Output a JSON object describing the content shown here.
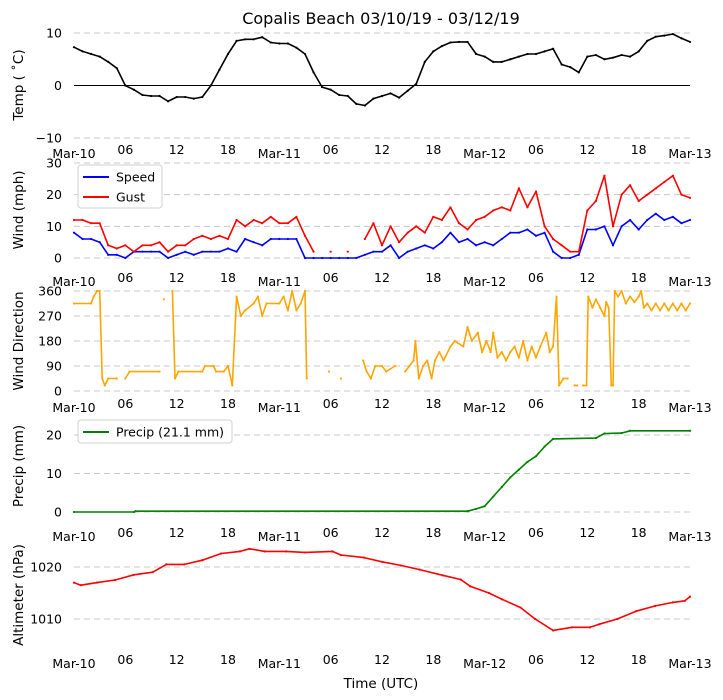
{
  "title": "Copalis Beach 03/10/19 - 03/12/19",
  "xlabel": "Time (UTC)",
  "xticks": {
    "hours": [
      0,
      6,
      12,
      18,
      24,
      30,
      36,
      42,
      48,
      54,
      60,
      66,
      72
    ],
    "labels": [
      "Mar-10",
      "06",
      "12",
      "18",
      "Mar-11",
      "06",
      "12",
      "18",
      "Mar-12",
      "06",
      "12",
      "18",
      "Mar-13"
    ]
  },
  "chart_data": [
    {
      "type": "line",
      "ylabel": "Temp ( ˚C)",
      "ylim": [
        -10,
        10
      ],
      "yticks": [
        -10,
        0,
        10
      ],
      "zero_line": true,
      "legend": null,
      "series": [
        {
          "name": "Temp",
          "color": "#000000",
          "hourly": [
            7.3,
            6.5,
            6,
            5.5,
            4.5,
            3.3,
            0,
            -0.8,
            -1.8,
            -2,
            -2,
            -3,
            -2.2,
            -2.2,
            -2.5,
            -2.2,
            0,
            3,
            6,
            8.5,
            8.8,
            8.8,
            9.2,
            8.2,
            8,
            8,
            7.2,
            6,
            2.5,
            -0.3,
            -0.8,
            -1.8,
            -2,
            -3.5,
            -3.8,
            -2.5,
            -2,
            -1.5,
            -2.3,
            -1,
            0.3,
            4.5,
            6.5,
            7.5,
            8.2,
            8.3,
            8.3,
            6,
            5.5,
            4.5,
            4.5,
            5,
            5.5,
            6,
            6,
            6.5,
            7,
            4,
            3.5,
            2.5,
            5.5,
            5.8,
            5,
            5.3,
            5.8,
            5.5,
            6.5,
            8.5,
            9.3,
            9.5,
            9.8,
            9,
            8.3
          ]
        }
      ]
    },
    {
      "type": "line",
      "ylabel": "Wind (mph)",
      "ylim": [
        0,
        30
      ],
      "yticks": [
        0,
        10,
        20,
        30
      ],
      "legend": "top-left",
      "series": [
        {
          "name": "Speed",
          "color": "#0000ff",
          "hourly": [
            8,
            6,
            6,
            5,
            1,
            1,
            0,
            2,
            2,
            2,
            2,
            0,
            1,
            2,
            1,
            2,
            2,
            2,
            3,
            2,
            6,
            5,
            4,
            6,
            6,
            6,
            6,
            0,
            0,
            0,
            0,
            0,
            0,
            0,
            1,
            2,
            2,
            4,
            0,
            2,
            3,
            4,
            3,
            5,
            8,
            5,
            6,
            4,
            5,
            4,
            6,
            8,
            8,
            9,
            7,
            8,
            2,
            0,
            0,
            1,
            9,
            9,
            10,
            4,
            10,
            12,
            9,
            12,
            14,
            12,
            13,
            11,
            12
          ]
        },
        {
          "name": "Gust",
          "color": "#ff0000",
          "hourly": [
            12,
            12,
            11,
            11,
            4,
            3,
            4,
            2,
            4,
            4,
            5,
            2,
            4,
            4,
            6,
            7,
            6,
            7,
            6,
            12,
            10,
            12,
            11,
            13,
            11,
            11,
            13,
            7,
            2,
            null,
            2,
            null,
            2,
            null,
            6,
            11,
            4,
            10,
            5,
            8,
            10,
            8,
            13,
            12,
            16,
            11,
            9,
            12,
            13,
            15,
            16,
            15,
            22,
            16,
            21,
            10,
            6,
            4,
            2,
            2,
            15,
            18,
            26,
            10,
            20,
            23,
            18,
            20,
            22,
            24,
            26,
            20,
            19
          ]
        }
      ]
    },
    {
      "type": "line",
      "ylabel": "Wind Direction",
      "ylim": [
        0,
        360
      ],
      "yticks": [
        0,
        90,
        180,
        270,
        360
      ],
      "legend": null,
      "series": [
        {
          "name": "Direction",
          "color": "#ffa500",
          "points": [
            [
              0,
              315
            ],
            [
              2,
              315
            ],
            [
              2.3,
              340
            ],
            [
              2.7,
              360
            ],
            [
              3,
              360
            ],
            [
              3.3,
              45
            ],
            [
              3.6,
              20
            ],
            [
              4,
              45
            ],
            [
              5,
              45
            ],
            null,
            [
              6,
              45
            ],
            [
              6.5,
              70
            ],
            [
              10,
              70
            ],
            null,
            [
              10.5,
              330
            ],
            null,
            [
              11.5,
              360
            ],
            [
              11.8,
              45
            ],
            [
              12.2,
              70
            ],
            [
              15,
              70
            ],
            [
              15.3,
              90
            ],
            [
              16.3,
              90
            ],
            [
              16.6,
              70
            ],
            [
              17.5,
              70
            ],
            [
              18,
              90
            ],
            [
              18.5,
              20
            ],
            [
              19,
              340
            ],
            [
              19.5,
              270
            ],
            [
              20,
              290
            ],
            [
              21,
              315
            ],
            [
              21.5,
              340
            ],
            [
              22,
              270
            ],
            [
              22.5,
              315
            ],
            [
              24,
              315
            ],
            [
              24.5,
              340
            ],
            [
              25,
              290
            ],
            [
              25.5,
              360
            ],
            [
              26,
              290
            ],
            [
              26.5,
              315
            ],
            [
              27,
              360
            ],
            [
              27.2,
              45
            ],
            null,
            [
              29.8,
              70
            ],
            null,
            [
              31.2,
              45
            ],
            null,
            [
              33.8,
              110
            ],
            [
              34.2,
              70
            ],
            [
              34.7,
              45
            ],
            [
              35.2,
              90
            ],
            [
              36,
              90
            ],
            [
              36.5,
              70
            ],
            [
              37.5,
              90
            ],
            null,
            [
              38.7,
              70
            ],
            [
              39.2,
              90
            ],
            [
              39.7,
              110
            ],
            [
              39.9,
              180
            ],
            [
              40.3,
              45
            ],
            [
              40.8,
              90
            ],
            [
              41.3,
              110
            ],
            [
              41.8,
              45
            ],
            [
              42.2,
              110
            ],
            [
              42.7,
              140
            ],
            [
              43.2,
              110
            ],
            [
              44,
              160
            ],
            [
              44.5,
              180
            ],
            [
              45.5,
              160
            ],
            [
              46,
              230
            ],
            [
              46.5,
              180
            ],
            [
              47.2,
              210
            ],
            [
              47.7,
              140
            ],
            [
              48.2,
              180
            ],
            [
              48.7,
              140
            ],
            [
              49,
              210
            ],
            [
              49.5,
              120
            ],
            [
              50,
              140
            ],
            [
              50.5,
              110
            ],
            [
              51,
              140
            ],
            [
              51.5,
              160
            ],
            [
              52,
              120
            ],
            [
              52.5,
              180
            ],
            [
              53,
              110
            ],
            [
              53.5,
              160
            ],
            [
              54,
              120
            ],
            [
              54.5,
              160
            ],
            [
              55.2,
              210
            ],
            [
              55.6,
              140
            ],
            [
              56,
              160
            ],
            [
              56.4,
              340
            ],
            [
              56.7,
              20
            ],
            [
              57.2,
              45
            ],
            [
              57.7,
              45
            ],
            null,
            [
              58.5,
              20
            ],
            [
              58.8,
              20
            ],
            null,
            [
              59.5,
              20
            ],
            [
              59.9,
              20
            ],
            [
              60.1,
              340
            ],
            [
              60.6,
              300
            ],
            [
              61,
              330
            ],
            [
              61.5,
              300
            ],
            [
              62,
              270
            ],
            [
              62.2,
              320
            ],
            [
              62.5,
              300
            ],
            [
              62.8,
              20
            ],
            [
              63,
              20
            ],
            [
              63.2,
              360
            ],
            [
              63.6,
              340
            ],
            [
              64,
              360
            ],
            [
              64.5,
              315
            ],
            [
              65,
              340
            ],
            [
              65.5,
              320
            ],
            [
              66,
              340
            ],
            [
              66.3,
              360
            ],
            [
              66.6,
              300
            ],
            [
              67,
              315
            ],
            [
              67.5,
              290
            ],
            [
              68,
              315
            ],
            [
              68.5,
              290
            ],
            [
              69,
              315
            ],
            [
              69.5,
              290
            ],
            [
              70,
              315
            ],
            [
              70.5,
              290
            ],
            [
              71,
              315
            ],
            [
              71.5,
              290
            ],
            [
              72,
              315
            ]
          ]
        }
      ]
    },
    {
      "type": "line",
      "ylabel": "Precip (mm)",
      "ylim": [
        0,
        22
      ],
      "yticks": [
        0,
        10,
        20
      ],
      "legend": "top-left",
      "series": [
        {
          "name": "Precip (21.1 mm)",
          "color": "#008000",
          "points": [
            [
              0,
              0
            ],
            [
              7,
              0
            ],
            [
              7.2,
              0.2
            ],
            [
              46,
              0.2
            ],
            [
              47,
              0.8
            ],
            [
              48,
              1.5
            ],
            [
              49,
              4
            ],
            [
              50,
              6.5
            ],
            [
              51,
              9
            ],
            [
              52,
              11
            ],
            [
              53,
              13
            ],
            [
              54,
              14.5
            ],
            [
              55,
              17
            ],
            [
              56,
              19
            ],
            [
              61,
              19.2
            ],
            [
              62,
              20.4
            ],
            [
              64,
              20.5
            ],
            [
              65,
              21.1
            ],
            [
              72,
              21.1
            ]
          ]
        }
      ]
    },
    {
      "type": "line",
      "ylabel": "Altimeter (hPa)",
      "ylim": [
        1004,
        1025
      ],
      "yticks": [
        1010,
        1020
      ],
      "legend": null,
      "series": [
        {
          "name": "Altimeter",
          "color": "#ff0000",
          "points": [
            [
              0,
              1017
            ],
            [
              0.8,
              1016.5
            ],
            [
              2.7,
              1017
            ],
            [
              4.8,
              1017.5
            ],
            [
              7,
              1018.5
            ],
            [
              9.2,
              1019
            ],
            [
              10.8,
              1020.5
            ],
            [
              12.9,
              1020.5
            ],
            [
              15,
              1021.3
            ],
            [
              17.2,
              1022.6
            ],
            [
              19.4,
              1023
            ],
            [
              20.5,
              1023.5
            ],
            [
              22.3,
              1023
            ],
            [
              24.8,
              1023
            ],
            [
              27,
              1022.8
            ],
            [
              30.2,
              1023
            ],
            [
              31.2,
              1022.3
            ],
            [
              33.9,
              1021.8
            ],
            [
              36,
              1021
            ],
            [
              38.2,
              1020.3
            ],
            [
              40.4,
              1019.5
            ],
            [
              43.1,
              1018.4
            ],
            [
              45.2,
              1017.6
            ],
            [
              46.3,
              1016.3
            ],
            [
              48.5,
              1015
            ],
            [
              50,
              1013.8
            ],
            [
              52.2,
              1012.2
            ],
            [
              53.9,
              1010
            ],
            [
              56,
              1007.8
            ],
            [
              58.2,
              1008.4
            ],
            [
              60.3,
              1008.4
            ],
            [
              61.4,
              1009
            ],
            [
              63.5,
              1010
            ],
            [
              65.7,
              1011.5
            ],
            [
              67.9,
              1012.5
            ],
            [
              70,
              1013.2
            ],
            [
              71.4,
              1013.5
            ],
            [
              72,
              1014.3
            ]
          ]
        }
      ]
    }
  ]
}
